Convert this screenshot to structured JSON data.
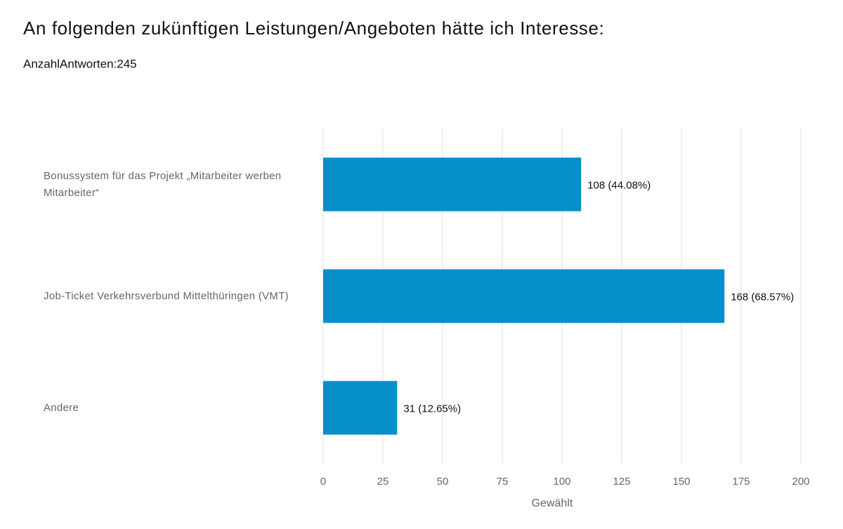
{
  "chart_data": {
    "type": "bar",
    "orientation": "horizontal",
    "title": "An folgenden zukünftigen Leistungen/Angeboten hätte ich Interesse:",
    "subtitle": "AnzahlAntworten:245",
    "categories": [
      "Bonussystem für das Projekt „Mitarbeiter werben Mitarbeiter“",
      "Job-Ticket Verkehrsverbund Mittelthüringen (VMT)",
      "Andere"
    ],
    "values": [
      108,
      168,
      31
    ],
    "value_labels": [
      "108 (44.08%)",
      "168 (68.57%)",
      "31 (12.65%)"
    ],
    "color": "#078fca",
    "xlabel": "Gewählt",
    "xlim": [
      0,
      200
    ],
    "xticks": [
      0,
      25,
      50,
      75,
      100,
      125,
      150,
      175,
      200
    ],
    "grid": true
  }
}
